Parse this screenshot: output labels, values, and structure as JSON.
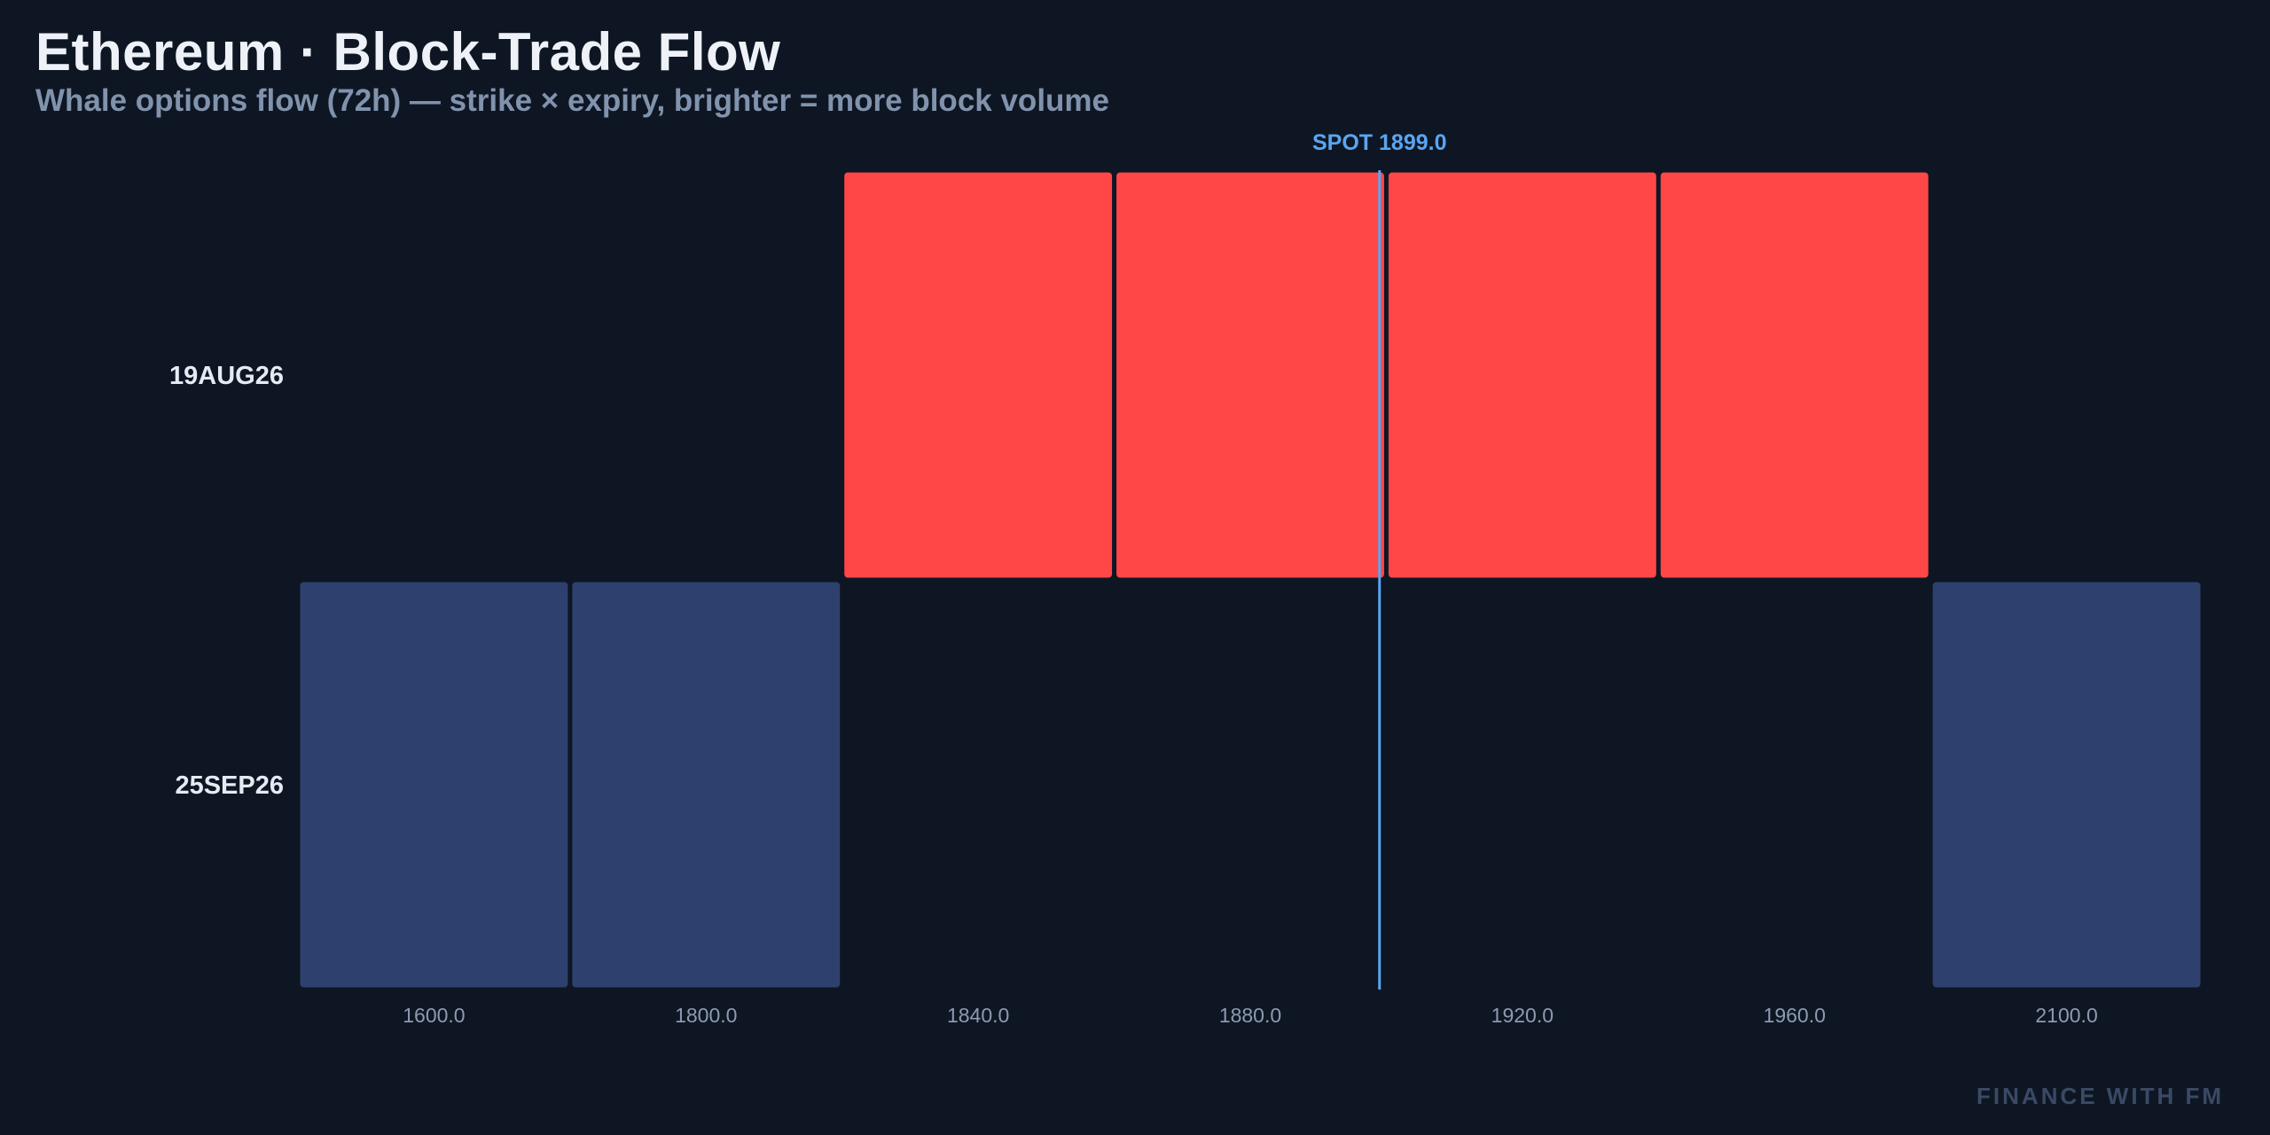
{
  "header": {
    "title": "Ethereum · Block-Trade Flow",
    "subtitle": "Whale options flow (72h) — strike × expiry, brighter = more block volume"
  },
  "watermark": "FINANCE WITH FM",
  "colors": {
    "background": "#0e1624",
    "call_heavy": "#ff4747",
    "low_volume": "#2e416e",
    "spot_line": "#5aa6f2"
  },
  "chart_data": {
    "type": "heatmap",
    "title": "Ethereum · Block-Trade Flow",
    "subtitle": "Whale options flow (72h) — strike × expiry, brighter = more block volume",
    "x_categories": [
      "1600.0",
      "1800.0",
      "1840.0",
      "1880.0",
      "1920.0",
      "1960.0",
      "2100.0"
    ],
    "y_categories": [
      "19AUG26",
      "25SEP26"
    ],
    "spot": {
      "label": "SPOT 1899.0",
      "value": 1899.0
    },
    "cells": [
      {
        "expiry": "19AUG26",
        "strike": "1840.0",
        "color": "#ff4747"
      },
      {
        "expiry": "19AUG26",
        "strike": "1880.0",
        "color": "#ff4747"
      },
      {
        "expiry": "19AUG26",
        "strike": "1920.0",
        "color": "#ff4747"
      },
      {
        "expiry": "19AUG26",
        "strike": "1960.0",
        "color": "#ff4747"
      },
      {
        "expiry": "25SEP26",
        "strike": "1600.0",
        "color": "#2e416e"
      },
      {
        "expiry": "25SEP26",
        "strike": "1800.0",
        "color": "#2e416e"
      },
      {
        "expiry": "25SEP26",
        "strike": "2100.0",
        "color": "#2e416e"
      }
    ]
  }
}
